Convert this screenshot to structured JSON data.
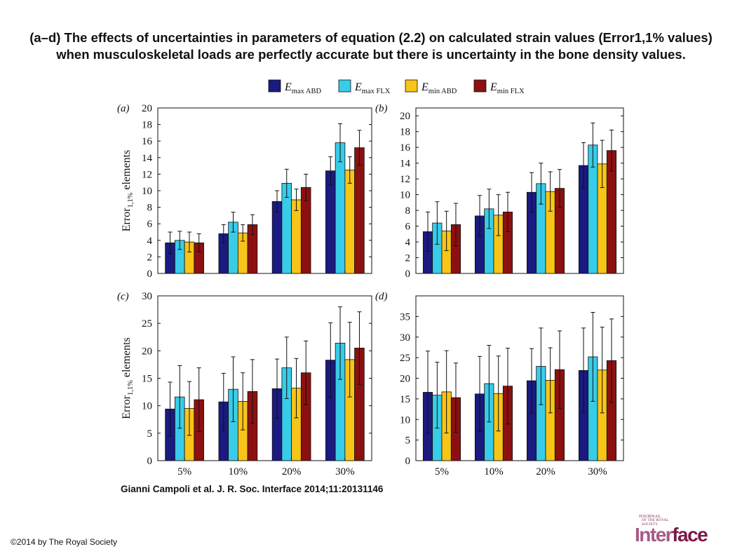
{
  "title": "(a–d) The effects of uncertainties in parameters of equation (2.2) on calculated strain values (Error1,1% values) when musculoskeletal loads are perfectly accurate but there is uncertainty in the bone density values.",
  "citation": "Gianni Campoli et al. J. R. Soc. Interface 2014;11:20131146",
  "copyright": "©2014 by The Royal Society",
  "logo": {
    "line1": "JOURNAL",
    "line2": "OF THE ROYAL",
    "line3": "SOCIETY",
    "brand_a": "Inter",
    "brand_b": "face"
  },
  "legend": [
    {
      "main": "E",
      "sub": "max ABD",
      "color": "#1a1a80"
    },
    {
      "main": "E",
      "sub": "max FLX",
      "color": "#38cce8"
    },
    {
      "main": "E",
      "sub": "min ABD",
      "color": "#f8c418"
    },
    {
      "main": "E",
      "sub": "min FLX",
      "color": "#8c1010"
    }
  ],
  "chart_data": [
    {
      "panel": "(a)",
      "type": "bar",
      "categories": [
        "5%",
        "10%",
        "20%",
        "30%"
      ],
      "ylim": [
        0,
        20
      ],
      "yticks": [
        "0",
        "2",
        "4",
        "6",
        "8",
        "10",
        "12",
        "14",
        "16",
        "18",
        "20"
      ],
      "ylabel_main": "Error",
      "ylabel_sub": "1,1%",
      "ylabel_rest": " elements",
      "show_xticklabels": false,
      "series": [
        {
          "values": [
            3.7,
            4.8,
            8.7,
            12.4
          ],
          "errors": [
            1.3,
            1.1,
            1.3,
            1.7
          ]
        },
        {
          "values": [
            4.0,
            6.2,
            10.9,
            15.8
          ],
          "errors": [
            1.1,
            1.2,
            1.7,
            2.3
          ]
        },
        {
          "values": [
            3.8,
            4.9,
            8.9,
            12.5
          ],
          "errors": [
            1.2,
            1.0,
            1.3,
            1.6
          ]
        },
        {
          "values": [
            3.7,
            5.9,
            10.4,
            15.2
          ],
          "errors": [
            1.1,
            1.2,
            1.6,
            2.1
          ]
        }
      ]
    },
    {
      "panel": "(b)",
      "type": "bar",
      "categories": [
        "5%",
        "10%",
        "20%",
        "30%"
      ],
      "ylim": [
        0,
        21
      ],
      "yticks": [
        "0",
        "2",
        "4",
        "6",
        "8",
        "10",
        "12",
        "14",
        "16",
        "18",
        "20"
      ],
      "ylabel_main": "",
      "ylabel_sub": "",
      "ylabel_rest": "",
      "show_xticklabels": false,
      "series": [
        {
          "values": [
            5.3,
            7.3,
            10.3,
            13.7
          ],
          "errors": [
            2.5,
            2.6,
            2.5,
            2.9
          ]
        },
        {
          "values": [
            6.4,
            8.2,
            11.4,
            16.3
          ],
          "errors": [
            2.7,
            2.5,
            2.6,
            2.8
          ]
        },
        {
          "values": [
            5.4,
            7.4,
            10.4,
            13.9
          ],
          "errors": [
            2.5,
            2.6,
            2.5,
            3.0
          ]
        },
        {
          "values": [
            6.2,
            7.8,
            10.8,
            15.6
          ],
          "errors": [
            2.7,
            2.5,
            2.4,
            2.6
          ]
        }
      ]
    },
    {
      "panel": "(c)",
      "type": "bar",
      "categories": [
        "5%",
        "10%",
        "20%",
        "30%"
      ],
      "ylim": [
        0,
        30
      ],
      "yticks": [
        "0",
        "5",
        "10",
        "15",
        "20",
        "25",
        "30"
      ],
      "ylabel_main": "Error",
      "ylabel_sub": "1,1%",
      "ylabel_rest": " elements",
      "show_xticklabels": true,
      "series": [
        {
          "values": [
            9.4,
            10.7,
            13.1,
            18.3
          ],
          "errors": [
            4.9,
            5.2,
            5.4,
            6.8
          ]
        },
        {
          "values": [
            11.6,
            13.0,
            16.9,
            21.4
          ],
          "errors": [
            5.7,
            5.9,
            5.6,
            6.6
          ]
        },
        {
          "values": [
            9.5,
            10.8,
            13.2,
            18.4
          ],
          "errors": [
            4.9,
            5.2,
            5.4,
            6.8
          ]
        },
        {
          "values": [
            11.1,
            12.6,
            16.0,
            20.5
          ],
          "errors": [
            5.8,
            5.8,
            5.8,
            6.6
          ]
        }
      ]
    },
    {
      "panel": "(d)",
      "type": "bar",
      "categories": [
        "5%",
        "10%",
        "20%",
        "30%"
      ],
      "ylim": [
        0,
        40
      ],
      "yticks": [
        "0",
        "5",
        "10",
        "15",
        "20",
        "25",
        "30",
        "35"
      ],
      "ylabel_main": "",
      "ylabel_sub": "",
      "ylabel_rest": "",
      "show_xticklabels": true,
      "series": [
        {
          "values": [
            16.6,
            16.2,
            19.4,
            21.9
          ],
          "errors": [
            10.0,
            9.1,
            7.8,
            10.3
          ]
        },
        {
          "values": [
            15.9,
            18.7,
            22.9,
            25.2
          ],
          "errors": [
            8.0,
            9.3,
            9.3,
            10.8
          ]
        },
        {
          "values": [
            16.7,
            16.3,
            19.5,
            22.0
          ],
          "errors": [
            10.0,
            9.1,
            7.9,
            10.4
          ]
        },
        {
          "values": [
            15.3,
            18.1,
            22.1,
            24.3
          ],
          "errors": [
            8.4,
            9.2,
            9.4,
            10.1
          ]
        }
      ]
    }
  ]
}
